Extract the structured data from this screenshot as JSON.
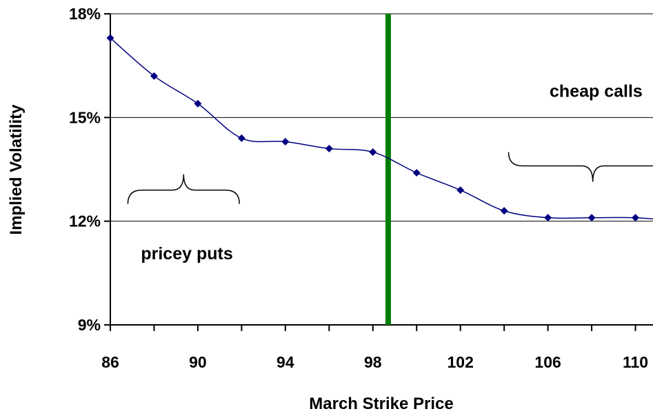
{
  "colors": {
    "series": "#000080",
    "strike_line": "#008000",
    "grid": "#000000",
    "background": "#ffffff"
  },
  "chart_data": {
    "type": "line",
    "title": "",
    "xlabel": "March Strike Price",
    "ylabel": "Implied Volatility",
    "xlim": [
      86,
      112
    ],
    "ylim": [
      9,
      18
    ],
    "x_ticks": [
      86,
      90,
      94,
      98,
      102,
      106,
      110
    ],
    "x_tick_labels": [
      "86",
      "90",
      "94",
      "98",
      "102",
      "106",
      "110"
    ],
    "y_ticks": [
      9,
      12,
      15,
      18
    ],
    "y_tick_labels": [
      "9%",
      "12%",
      "15%",
      "18%"
    ],
    "grid": "horizontal",
    "legend": "none",
    "series": [
      {
        "marker": "diamond",
        "x": [
          86,
          88,
          90,
          92,
          94,
          96,
          98,
          100,
          102,
          104,
          106,
          108,
          110,
          112
        ],
        "values": [
          17.3,
          16.2,
          15.4,
          14.4,
          14.3,
          14.1,
          14.0,
          13.4,
          12.9,
          12.3,
          12.1,
          12.1,
          12.1,
          12.0
        ]
      }
    ],
    "reference_line": {
      "x": 98.7,
      "orientation": "vertical"
    },
    "annotations": [
      {
        "text": "cheap calls",
        "x": 108.2,
        "y": 15.6,
        "bracket": {
          "x1": 104.2,
          "x2": 111.9,
          "y": 13.6,
          "direction": "down"
        }
      },
      {
        "text": "pricey puts",
        "x": 89.5,
        "y": 10.9,
        "bracket": {
          "x1": 86.8,
          "x2": 91.9,
          "y": 12.9,
          "direction": "up"
        }
      }
    ]
  }
}
